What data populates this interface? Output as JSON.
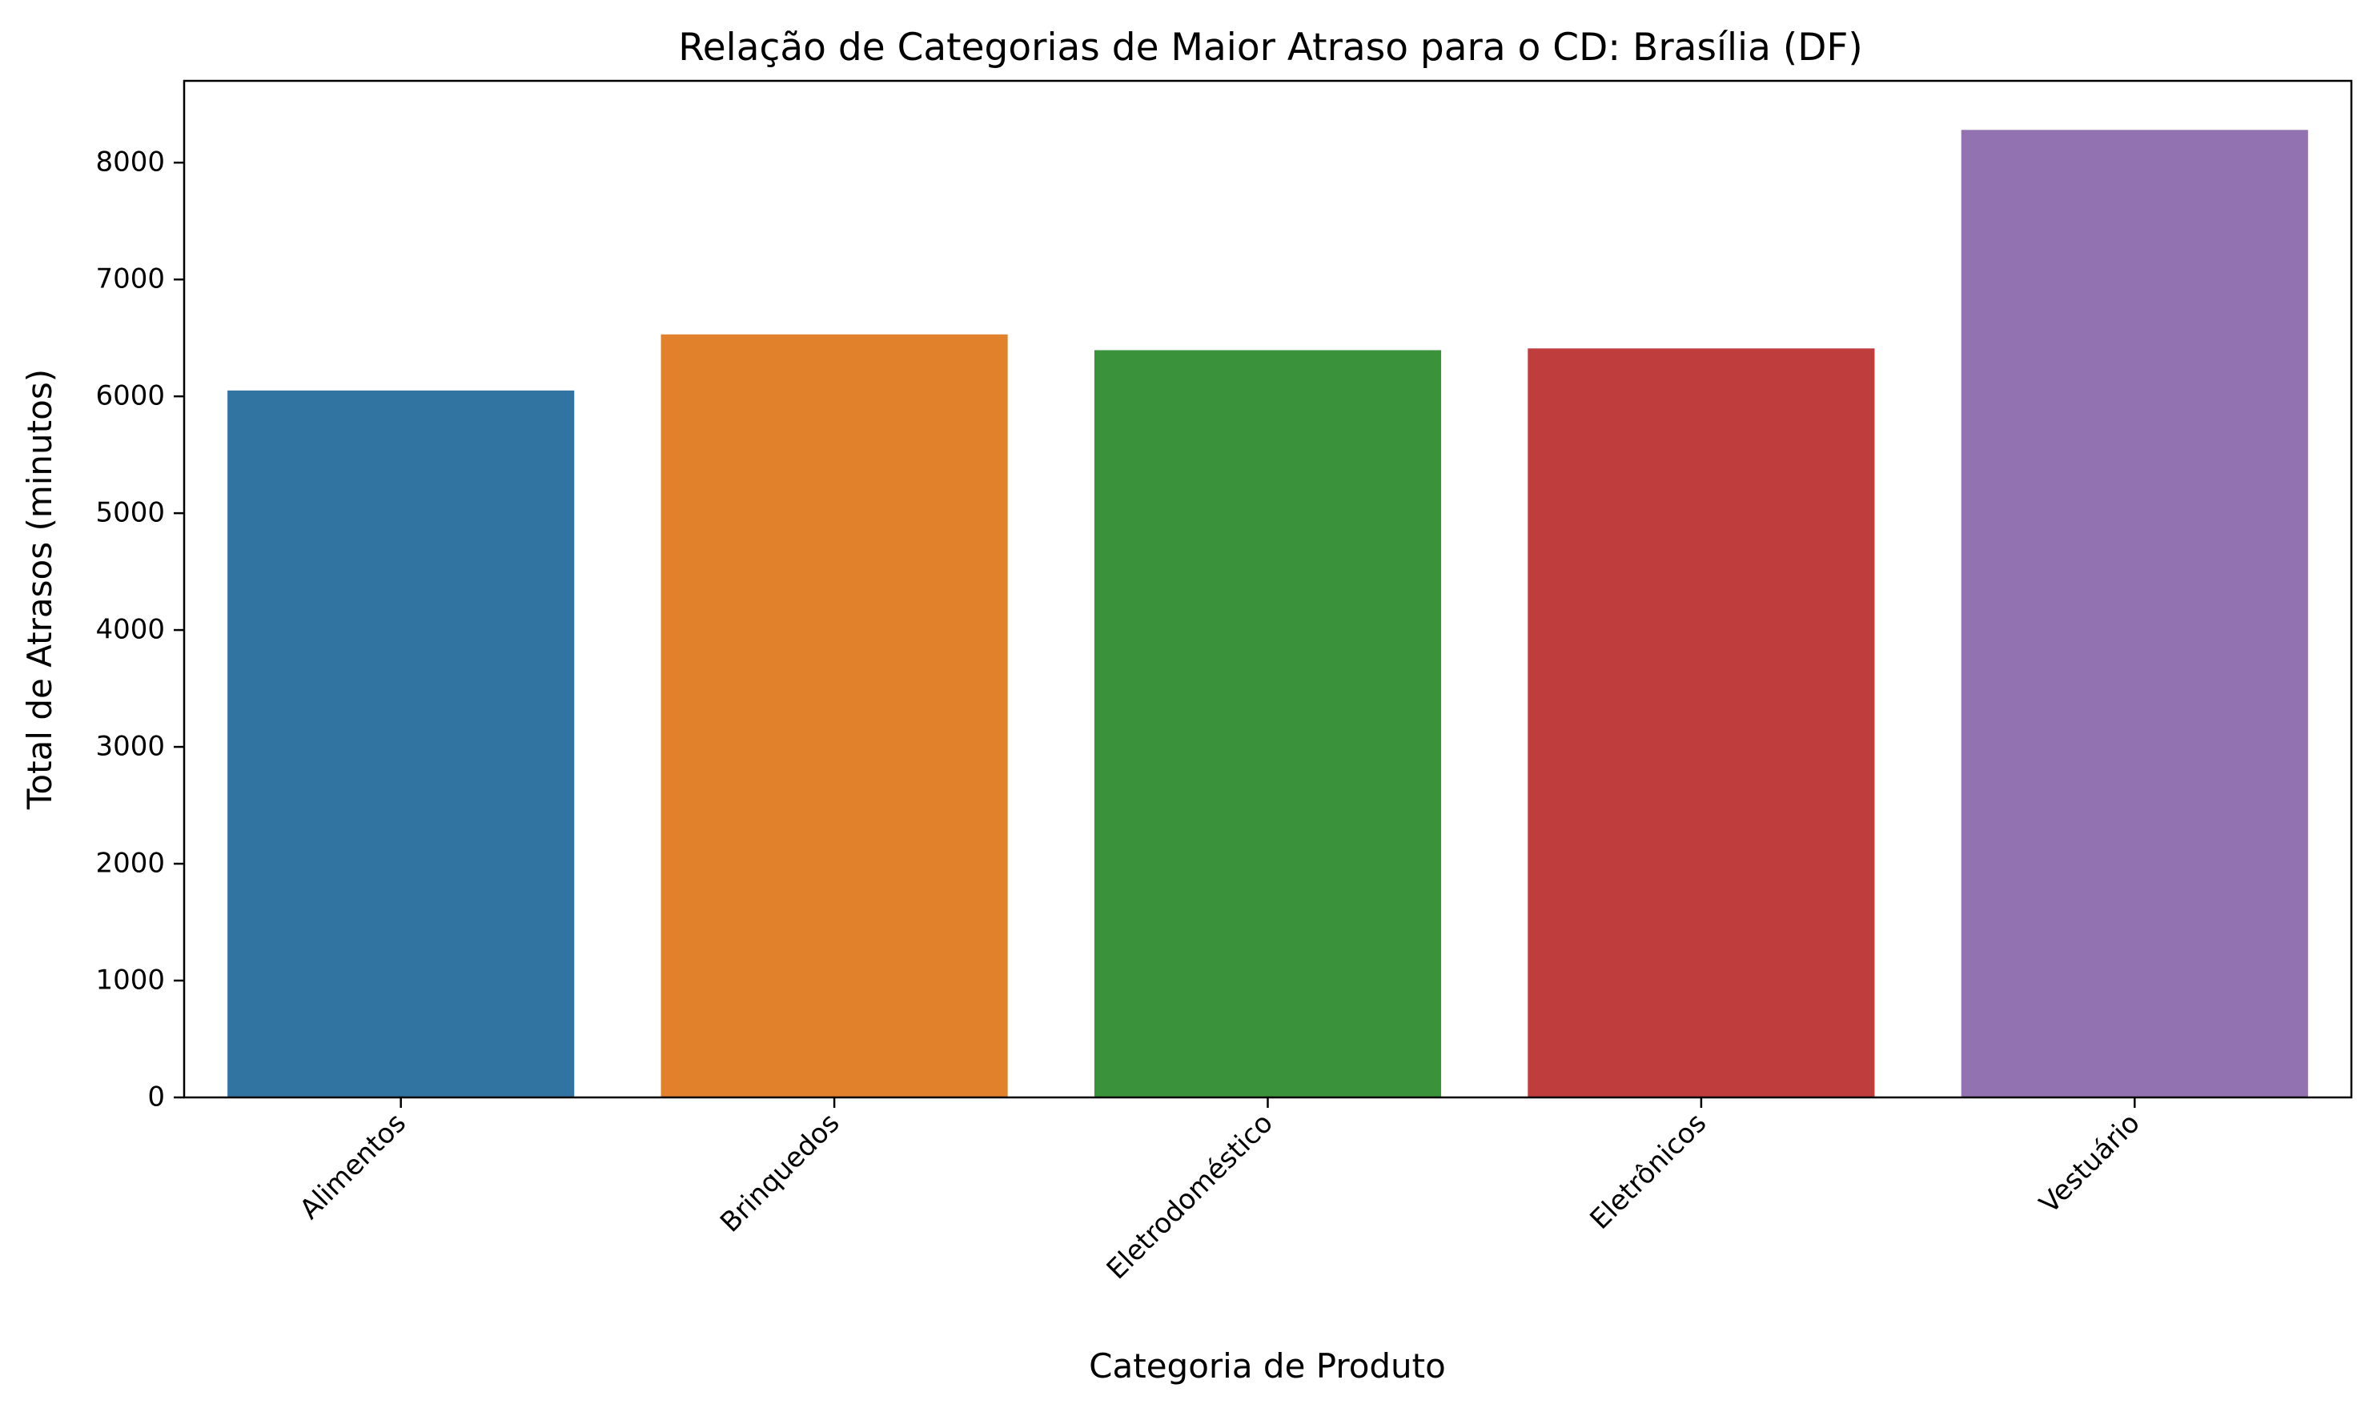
{
  "chart_data": {
    "type": "bar",
    "title": "Relação de Categorias de Maior Atraso para o CD: Brasília (DF)",
    "xlabel": "Categoria de Produto",
    "ylabel": "Total de Atrasos (minutos)",
    "categories": [
      "Alimentos",
      "Brinquedos",
      "Eletrodoméstico",
      "Eletrônicos",
      "Vestuário"
    ],
    "values": [
      6050,
      6530,
      6395,
      6410,
      8280
    ],
    "colors": [
      "#3274a1",
      "#e1812c",
      "#3a923a",
      "#c03d3e",
      "#9372b2"
    ],
    "ylim": [
      0,
      8700
    ],
    "yticks": [
      0,
      1000,
      2000,
      3000,
      4000,
      5000,
      6000,
      7000,
      8000
    ],
    "xtick_rotation": 45,
    "grid": false,
    "legend": false
  }
}
